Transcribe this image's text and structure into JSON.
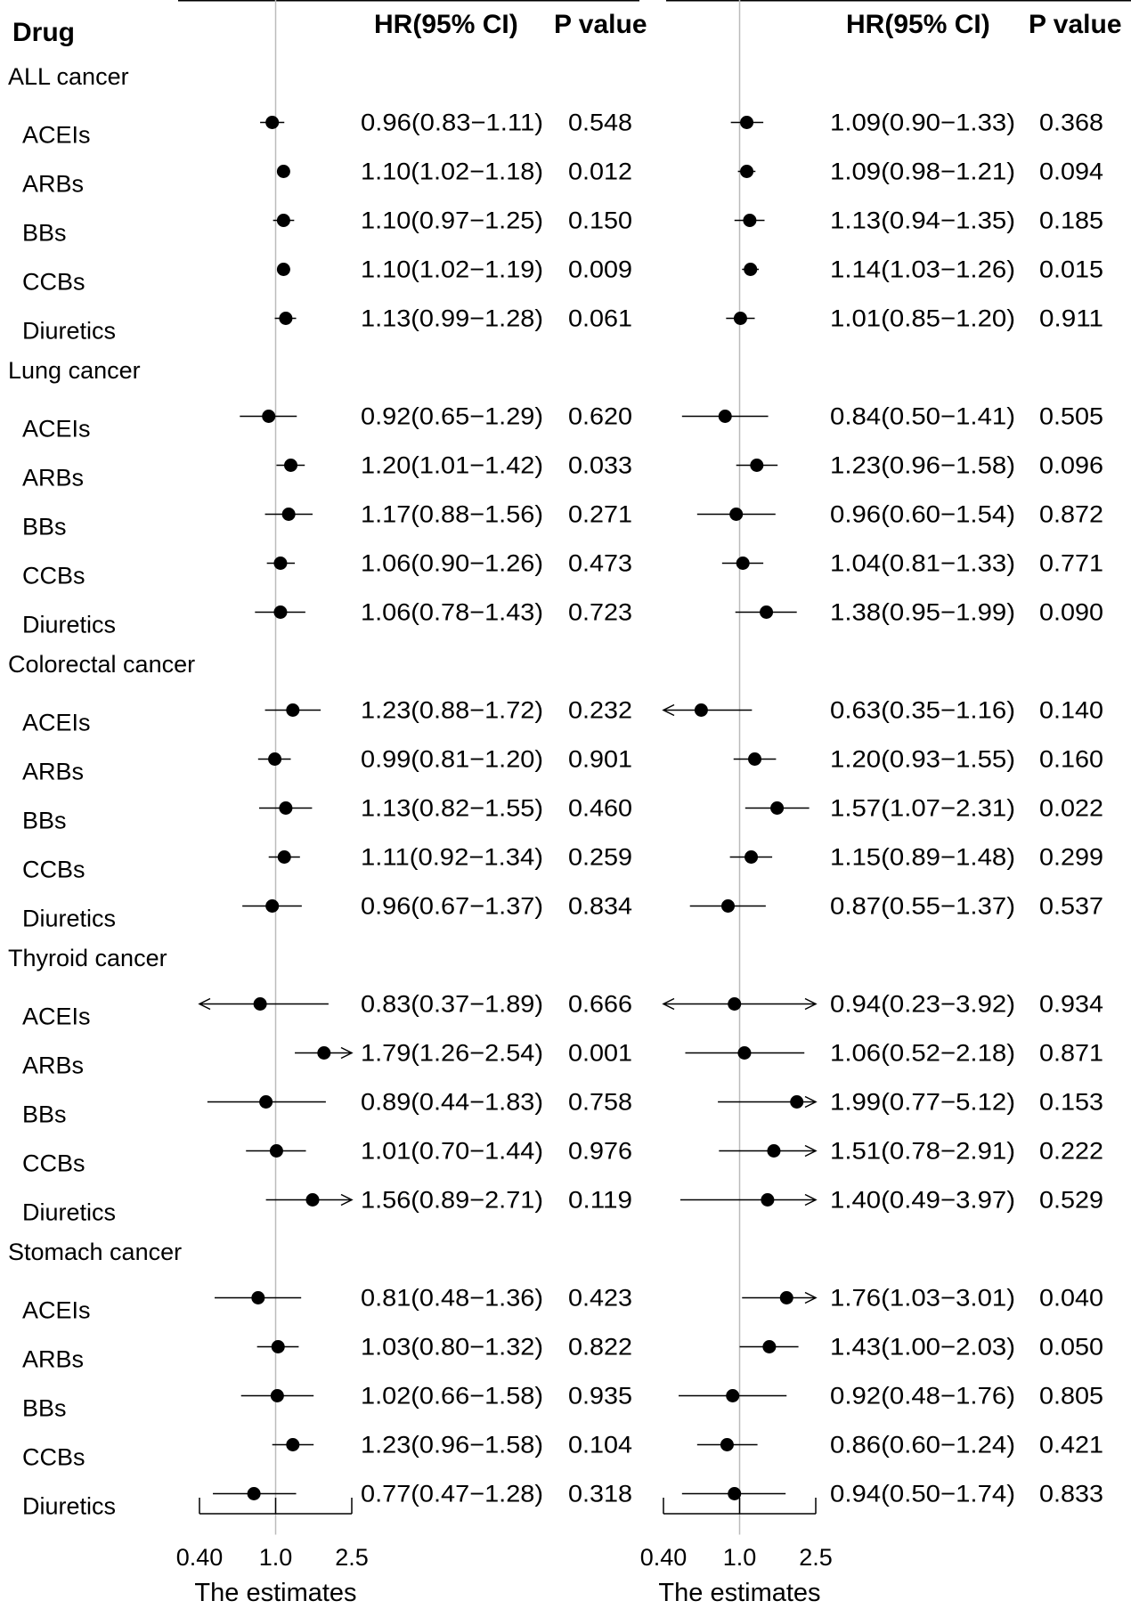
{
  "chart_data": {
    "type": "forest",
    "header": {
      "drug": "Drug",
      "hr": "HR(95% CI)",
      "p": "P value"
    },
    "xlabel": "The estimates",
    "xlim": [
      0.4,
      2.5
    ],
    "x_scale": "log",
    "reference_line": 1.0,
    "x_ticks": [
      0.4,
      1.0,
      2.5
    ],
    "x_tick_labels": [
      "0.40",
      "1.0",
      "2.5"
    ],
    "groups": [
      {
        "name": "ALL cancer",
        "rows": [
          {
            "drug": "ACEIs",
            "left": {
              "hr": 0.96,
              "lo": 0.83,
              "hi": 1.11,
              "text": "0.96(0.83−1.11)",
              "p": "0.548"
            },
            "right": {
              "hr": 1.09,
              "lo": 0.9,
              "hi": 1.33,
              "text": "1.09(0.90−1.33)",
              "p": "0.368"
            }
          },
          {
            "drug": "ARBs",
            "left": {
              "hr": 1.1,
              "lo": 1.02,
              "hi": 1.18,
              "text": "1.10(1.02−1.18)",
              "p": "0.012"
            },
            "right": {
              "hr": 1.09,
              "lo": 0.98,
              "hi": 1.21,
              "text": "1.09(0.98−1.21)",
              "p": "0.094"
            }
          },
          {
            "drug": "BBs",
            "left": {
              "hr": 1.1,
              "lo": 0.97,
              "hi": 1.25,
              "text": "1.10(0.97−1.25)",
              "p": "0.150"
            },
            "right": {
              "hr": 1.13,
              "lo": 0.94,
              "hi": 1.35,
              "text": "1.13(0.94−1.35)",
              "p": "0.185"
            }
          },
          {
            "drug": "CCBs",
            "left": {
              "hr": 1.1,
              "lo": 1.02,
              "hi": 1.19,
              "text": "1.10(1.02−1.19)",
              "p": "0.009"
            },
            "right": {
              "hr": 1.14,
              "lo": 1.03,
              "hi": 1.26,
              "text": "1.14(1.03−1.26)",
              "p": "0.015"
            }
          },
          {
            "drug": "Diuretics",
            "left": {
              "hr": 1.13,
              "lo": 0.99,
              "hi": 1.28,
              "text": "1.13(0.99−1.28)",
              "p": "0.061"
            },
            "right": {
              "hr": 1.01,
              "lo": 0.85,
              "hi": 1.2,
              "text": "1.01(0.85−1.20)",
              "p": "0.911"
            }
          }
        ]
      },
      {
        "name": "Lung cancer",
        "rows": [
          {
            "drug": "ACEIs",
            "left": {
              "hr": 0.92,
              "lo": 0.65,
              "hi": 1.29,
              "text": "0.92(0.65−1.29)",
              "p": "0.620"
            },
            "right": {
              "hr": 0.84,
              "lo": 0.5,
              "hi": 1.41,
              "text": "0.84(0.50−1.41)",
              "p": "0.505"
            }
          },
          {
            "drug": "ARBs",
            "left": {
              "hr": 1.2,
              "lo": 1.01,
              "hi": 1.42,
              "text": "1.20(1.01−1.42)",
              "p": "0.033"
            },
            "right": {
              "hr": 1.23,
              "lo": 0.96,
              "hi": 1.58,
              "text": "1.23(0.96−1.58)",
              "p": "0.096"
            }
          },
          {
            "drug": "BBs",
            "left": {
              "hr": 1.17,
              "lo": 0.88,
              "hi": 1.56,
              "text": "1.17(0.88−1.56)",
              "p": "0.271"
            },
            "right": {
              "hr": 0.96,
              "lo": 0.6,
              "hi": 1.54,
              "text": "0.96(0.60−1.54)",
              "p": "0.872"
            }
          },
          {
            "drug": "CCBs",
            "left": {
              "hr": 1.06,
              "lo": 0.9,
              "hi": 1.26,
              "text": "1.06(0.90−1.26)",
              "p": "0.473"
            },
            "right": {
              "hr": 1.04,
              "lo": 0.81,
              "hi": 1.33,
              "text": "1.04(0.81−1.33)",
              "p": "0.771"
            }
          },
          {
            "drug": "Diuretics",
            "left": {
              "hr": 1.06,
              "lo": 0.78,
              "hi": 1.43,
              "text": "1.06(0.78−1.43)",
              "p": "0.723"
            },
            "right": {
              "hr": 1.38,
              "lo": 0.95,
              "hi": 1.99,
              "text": "1.38(0.95−1.99)",
              "p": "0.090"
            }
          }
        ]
      },
      {
        "name": "Colorectal cancer",
        "rows": [
          {
            "drug": "ACEIs",
            "left": {
              "hr": 1.23,
              "lo": 0.88,
              "hi": 1.72,
              "text": "1.23(0.88−1.72)",
              "p": "0.232"
            },
            "right": {
              "hr": 0.63,
              "lo": 0.35,
              "hi": 1.16,
              "text": "0.63(0.35−1.16)",
              "p": "0.140"
            }
          },
          {
            "drug": "ARBs",
            "left": {
              "hr": 0.99,
              "lo": 0.81,
              "hi": 1.2,
              "text": "0.99(0.81−1.20)",
              "p": "0.901"
            },
            "right": {
              "hr": 1.2,
              "lo": 0.93,
              "hi": 1.55,
              "text": "1.20(0.93−1.55)",
              "p": "0.160"
            }
          },
          {
            "drug": "BBs",
            "left": {
              "hr": 1.13,
              "lo": 0.82,
              "hi": 1.55,
              "text": "1.13(0.82−1.55)",
              "p": "0.460"
            },
            "right": {
              "hr": 1.57,
              "lo": 1.07,
              "hi": 2.31,
              "text": "1.57(1.07−2.31)",
              "p": "0.022"
            }
          },
          {
            "drug": "CCBs",
            "left": {
              "hr": 1.11,
              "lo": 0.92,
              "hi": 1.34,
              "text": "1.11(0.92−1.34)",
              "p": "0.259"
            },
            "right": {
              "hr": 1.15,
              "lo": 0.89,
              "hi": 1.48,
              "text": "1.15(0.89−1.48)",
              "p": "0.299"
            }
          },
          {
            "drug": "Diuretics",
            "left": {
              "hr": 0.96,
              "lo": 0.67,
              "hi": 1.37,
              "text": "0.96(0.67−1.37)",
              "p": "0.834"
            },
            "right": {
              "hr": 0.87,
              "lo": 0.55,
              "hi": 1.37,
              "text": "0.87(0.55−1.37)",
              "p": "0.537"
            }
          }
        ]
      },
      {
        "name": "Thyroid cancer",
        "rows": [
          {
            "drug": "ACEIs",
            "left": {
              "hr": 0.83,
              "lo": 0.37,
              "hi": 1.89,
              "text": "0.83(0.37−1.89)",
              "p": "0.666"
            },
            "right": {
              "hr": 0.94,
              "lo": 0.23,
              "hi": 3.92,
              "text": "0.94(0.23−3.92)",
              "p": "0.934"
            }
          },
          {
            "drug": "ARBs",
            "left": {
              "hr": 1.79,
              "lo": 1.26,
              "hi": 2.54,
              "text": "1.79(1.26−2.54)",
              "p": "0.001"
            },
            "right": {
              "hr": 1.06,
              "lo": 0.52,
              "hi": 2.18,
              "text": "1.06(0.52−2.18)",
              "p": "0.871"
            }
          },
          {
            "drug": "BBs",
            "left": {
              "hr": 0.89,
              "lo": 0.44,
              "hi": 1.83,
              "text": "0.89(0.44−1.83)",
              "p": "0.758"
            },
            "right": {
              "hr": 1.99,
              "lo": 0.77,
              "hi": 5.12,
              "text": "1.99(0.77−5.12)",
              "p": "0.153"
            }
          },
          {
            "drug": "CCBs",
            "left": {
              "hr": 1.01,
              "lo": 0.7,
              "hi": 1.44,
              "text": "1.01(0.70−1.44)",
              "p": "0.976"
            },
            "right": {
              "hr": 1.51,
              "lo": 0.78,
              "hi": 2.91,
              "text": "1.51(0.78−2.91)",
              "p": "0.222"
            }
          },
          {
            "drug": "Diuretics",
            "left": {
              "hr": 1.56,
              "lo": 0.89,
              "hi": 2.71,
              "text": "1.56(0.89−2.71)",
              "p": "0.119"
            },
            "right": {
              "hr": 1.4,
              "lo": 0.49,
              "hi": 3.97,
              "text": "1.40(0.49−3.97)",
              "p": "0.529"
            }
          }
        ]
      },
      {
        "name": "Stomach cancer",
        "rows": [
          {
            "drug": "ACEIs",
            "left": {
              "hr": 0.81,
              "lo": 0.48,
              "hi": 1.36,
              "text": "0.81(0.48−1.36)",
              "p": "0.423"
            },
            "right": {
              "hr": 1.76,
              "lo": 1.03,
              "hi": 3.01,
              "text": "1.76(1.03−3.01)",
              "p": "0.040"
            }
          },
          {
            "drug": "ARBs",
            "left": {
              "hr": 1.03,
              "lo": 0.8,
              "hi": 1.32,
              "text": "1.03(0.80−1.32)",
              "p": "0.822"
            },
            "right": {
              "hr": 1.43,
              "lo": 1.0,
              "hi": 2.03,
              "text": "1.43(1.00−2.03)",
              "p": "0.050"
            }
          },
          {
            "drug": "BBs",
            "left": {
              "hr": 1.02,
              "lo": 0.66,
              "hi": 1.58,
              "text": "1.02(0.66−1.58)",
              "p": "0.935"
            },
            "right": {
              "hr": 0.92,
              "lo": 0.48,
              "hi": 1.76,
              "text": "0.92(0.48−1.76)",
              "p": "0.805"
            }
          },
          {
            "drug": "CCBs",
            "left": {
              "hr": 1.23,
              "lo": 0.96,
              "hi": 1.58,
              "text": "1.23(0.96−1.58)",
              "p": "0.104"
            },
            "right": {
              "hr": 0.86,
              "lo": 0.6,
              "hi": 1.24,
              "text": "0.86(0.60−1.24)",
              "p": "0.421"
            }
          },
          {
            "drug": "Diuretics",
            "left": {
              "hr": 0.77,
              "lo": 0.47,
              "hi": 1.28,
              "text": "0.77(0.47−1.28)",
              "p": "0.318"
            },
            "right": {
              "hr": 0.94,
              "lo": 0.5,
              "hi": 1.74,
              "text": "0.94(0.50−1.74)",
              "p": "0.833"
            }
          }
        ]
      }
    ],
    "colors": {
      "marker": "#000000",
      "reference_line": "#bbbbbb",
      "text": "#000000"
    }
  }
}
